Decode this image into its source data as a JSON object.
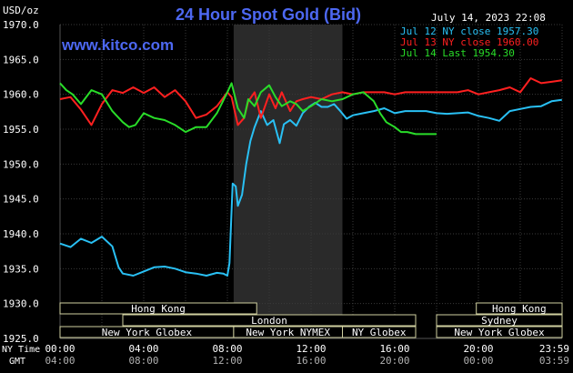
{
  "chart_data": {
    "type": "line",
    "title": "24 Hour Spot Gold (Bid)",
    "ylabel": "USD/oz",
    "website": "www.kitco.com",
    "timestamp": "July 14, 2023 22:08",
    "ylim": [
      1925,
      1970
    ],
    "yticks": [
      "1970.0",
      "1965.0",
      "1960.0",
      "1955.0",
      "1950.0",
      "1945.0",
      "1940.0",
      "1935.0",
      "1930.0",
      "1925.0"
    ],
    "xlim": [
      0,
      24
    ],
    "x_row_label_ny": "NY Time",
    "x_row_label_gmt": "GMT",
    "xticks_ny": [
      "00:00",
      "04:00",
      "08:00",
      "12:00",
      "16:00",
      "20:00",
      "23:59"
    ],
    "xticks_gmt": [
      "04:00",
      "08:00",
      "12:00",
      "16:00",
      "20:00",
      "00:00",
      "03:59"
    ],
    "colors": {
      "background": "#000000",
      "grid": "#3a3a3a",
      "shade": "#2a2a2a",
      "title": "#4d68f2",
      "website": "#4d68f2",
      "axis_text": "#ffffff",
      "gmt_text": "#b0b0b0",
      "session_box": "#000000",
      "session_border": "#d0d0a0",
      "session_text": "#ffffff"
    },
    "legend_position": "top-right",
    "series": [
      {
        "name": "Jul 12 NY close 1957.30",
        "color": "#29c0f4",
        "x": [
          0,
          0.5,
          1,
          1.5,
          2,
          2.5,
          2.8,
          3,
          3.5,
          4,
          4.5,
          5,
          5.5,
          6,
          6.5,
          7,
          7.5,
          7.8,
          8,
          8.1,
          8.25,
          8.4,
          8.5,
          8.7,
          8.9,
          9.1,
          9.3,
          9.6,
          9.9,
          10.2,
          10.5,
          10.7,
          11,
          11.3,
          11.6,
          11.9,
          12.2,
          12.5,
          12.8,
          13.1,
          13.4,
          13.7,
          14,
          14.5,
          15,
          15.5,
          16,
          16.5,
          17,
          17.5,
          18,
          18.5,
          19,
          19.5,
          20,
          20.5,
          21,
          21.5,
          22,
          22.5,
          23,
          23.5,
          23.99
        ],
        "values": [
          1938.6,
          1938.1,
          1939.3,
          1938.7,
          1939.6,
          1938.2,
          1935.2,
          1934.3,
          1934.0,
          1934.6,
          1935.2,
          1935.3,
          1935.0,
          1934.5,
          1934.3,
          1934.0,
          1934.4,
          1934.3,
          1934.0,
          1935.8,
          1947.2,
          1946.8,
          1944.0,
          1945.6,
          1950.0,
          1953.3,
          1955.3,
          1957.6,
          1955.6,
          1956.3,
          1953.0,
          1955.7,
          1956.3,
          1955.5,
          1957.3,
          1958.2,
          1958.8,
          1958.2,
          1958.2,
          1958.6,
          1957.6,
          1956.5,
          1957.0,
          1957.3,
          1957.6,
          1958.0,
          1957.3,
          1957.6,
          1957.6,
          1957.6,
          1957.3,
          1957.2,
          1957.3,
          1957.4,
          1956.9,
          1956.6,
          1956.2,
          1957.6,
          1957.9,
          1958.2,
          1958.3,
          1959.0,
          1959.2
        ]
      },
      {
        "name": "Jul 13 NY close 1960.00",
        "color": "#ff2020",
        "x": [
          0,
          0.5,
          1,
          1.5,
          2,
          2.5,
          3,
          3.5,
          4,
          4.5,
          5,
          5.5,
          6,
          6.5,
          7,
          7.5,
          8,
          8.2,
          8.5,
          8.8,
          9,
          9.3,
          9.6,
          10,
          10.3,
          10.6,
          11,
          11.3,
          11.6,
          12,
          12.5,
          13,
          13.5,
          14,
          14.5,
          15,
          15.5,
          16,
          16.5,
          17,
          17.5,
          18,
          18.5,
          19,
          19.5,
          20,
          20.5,
          21,
          21.5,
          22,
          22.5,
          23,
          23.5,
          23.99
        ],
        "values": [
          1959.3,
          1959.6,
          1957.8,
          1955.6,
          1958.6,
          1960.6,
          1960.2,
          1961.0,
          1960.2,
          1961.0,
          1959.6,
          1960.6,
          1959.0,
          1956.6,
          1957.1,
          1958.3,
          1960.3,
          1959.6,
          1955.6,
          1956.6,
          1959.0,
          1960.3,
          1956.6,
          1960.0,
          1958.0,
          1960.3,
          1957.6,
          1959.0,
          1959.3,
          1959.6,
          1959.3,
          1960.0,
          1960.3,
          1960.0,
          1960.3,
          1960.3,
          1960.3,
          1960.0,
          1960.3,
          1960.3,
          1960.3,
          1960.3,
          1960.3,
          1960.3,
          1960.6,
          1960.0,
          1960.3,
          1960.6,
          1961.0,
          1960.3,
          1962.3,
          1961.6,
          1961.8,
          1962.0
        ]
      },
      {
        "name": "Jul 14 Last 1954.30",
        "color": "#29dd29",
        "x": [
          0,
          0.3,
          0.6,
          1,
          1.5,
          2,
          2.5,
          3,
          3.3,
          3.6,
          4,
          4.5,
          5,
          5.5,
          6,
          6.5,
          7,
          7.5,
          8,
          8.2,
          8.5,
          8.8,
          9,
          9.3,
          9.6,
          10,
          10.3,
          10.6,
          11,
          11.3,
          11.6,
          12,
          12.5,
          13,
          13.5,
          14,
          14.5,
          15,
          15.3,
          15.6,
          16,
          16.3,
          16.6,
          17,
          17.5,
          18
        ],
        "values": [
          1961.6,
          1960.6,
          1960.0,
          1958.6,
          1960.6,
          1960.0,
          1957.6,
          1956.0,
          1955.3,
          1955.6,
          1957.3,
          1956.6,
          1956.3,
          1955.6,
          1954.6,
          1955.3,
          1955.3,
          1957.3,
          1960.3,
          1961.6,
          1958.0,
          1956.6,
          1959.3,
          1958.3,
          1960.3,
          1961.3,
          1959.6,
          1958.3,
          1959.0,
          1958.6,
          1957.6,
          1958.3,
          1959.3,
          1959.0,
          1959.3,
          1960.0,
          1960.3,
          1959.0,
          1957.3,
          1956.0,
          1955.3,
          1954.6,
          1954.6,
          1954.3,
          1954.3,
          1954.3
        ]
      }
    ],
    "sessions": [
      {
        "label": "Hong Kong",
        "x0": 0,
        "x1": 9.4,
        "row": 0
      },
      {
        "label": "Hong Kong",
        "x0": 19.9,
        "x1": 24,
        "row": 0
      },
      {
        "label": "London",
        "x0": 3,
        "x1": 17,
        "row": 1
      },
      {
        "label": "Sydney",
        "x0": 18,
        "x1": 24,
        "row": 1
      },
      {
        "label": "New York Globex",
        "x0": 0,
        "x1": 8.3,
        "row": 2
      },
      {
        "label": "New York NYMEX",
        "x0": 8.3,
        "x1": 13.5,
        "row": 2
      },
      {
        "label": "NY Globex",
        "x0": 13.5,
        "x1": 17,
        "row": 2
      },
      {
        "label": "New York Globex",
        "x0": 18,
        "x1": 24,
        "row": 2
      }
    ],
    "shaded_range": [
      8.3,
      13.5
    ],
    "grid": true
  }
}
